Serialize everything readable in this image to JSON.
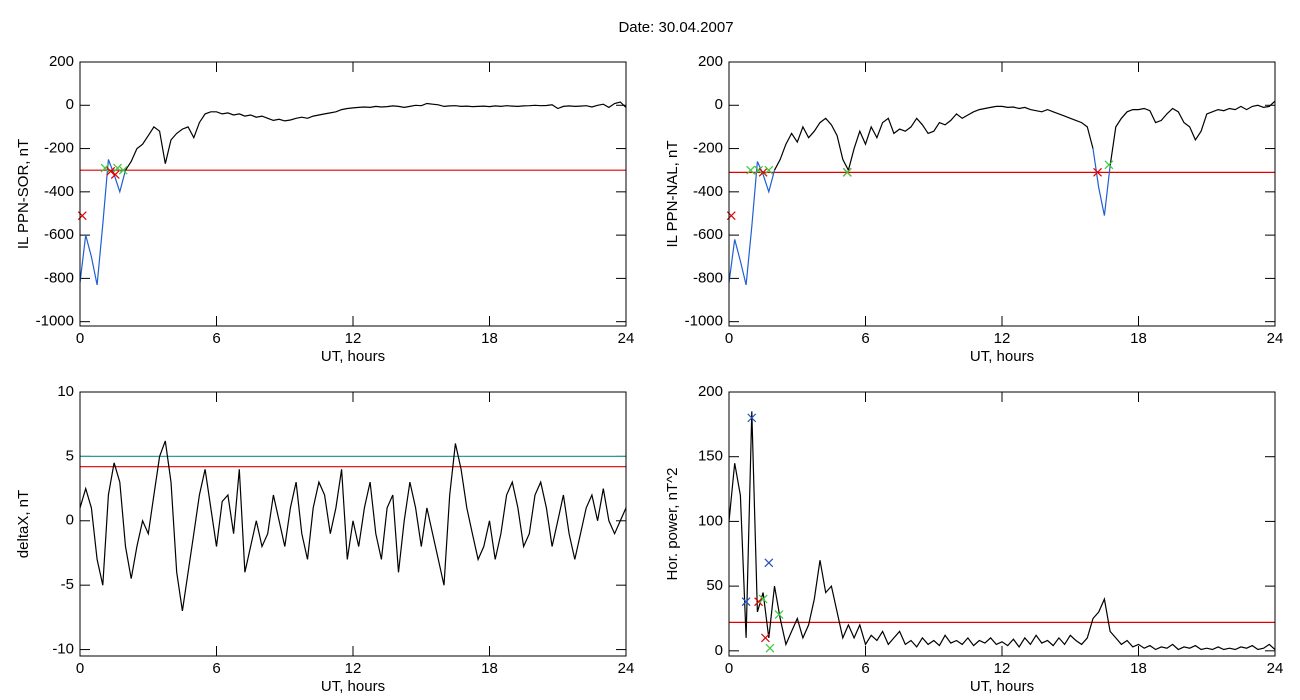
{
  "title": "Date:  30.04.2007",
  "chart_data": [
    {
      "type": "line",
      "xlabel": "UT, hours",
      "ylabel": "IL PPN-SOR, nT",
      "xlim": [
        0,
        24
      ],
      "xticks": [
        0,
        6,
        12,
        18,
        24
      ],
      "ylim": [
        -1020,
        200
      ],
      "yticks": [
        200,
        0,
        -200,
        -400,
        -600,
        -800,
        -1000
      ],
      "series": [
        {
          "color": "#1f5fd0",
          "x": [
            0,
            0.25,
            0.5,
            0.75,
            1,
            1.25,
            1.5,
            1.75,
            2
          ],
          "values": [
            -820,
            -600,
            -700,
            -830,
            -550,
            -250,
            -320,
            -400,
            -300
          ]
        },
        {
          "color": "#000000",
          "x": [
            2,
            2.25,
            2.5,
            2.75,
            3,
            3.25,
            3.5,
            3.75,
            4,
            4.25,
            4.5,
            4.75,
            5,
            5.25,
            5.5,
            5.75,
            6,
            6.25,
            6.5,
            6.75,
            7,
            7.25,
            7.5,
            7.75,
            8,
            8.25,
            8.5,
            8.75,
            9,
            9.25,
            9.5,
            9.75,
            10,
            10.25,
            10.5,
            10.75,
            11,
            11.25,
            11.5,
            11.75,
            12,
            12.25,
            12.5,
            12.75,
            13,
            13.25,
            13.5,
            13.75,
            14,
            14.25,
            14.5,
            14.75,
            15,
            15.25,
            15.5,
            15.75,
            16,
            16.25,
            16.5,
            16.75,
            17,
            17.25,
            17.5,
            17.75,
            18,
            18.25,
            18.5,
            18.75,
            19,
            19.25,
            19.5,
            19.75,
            20,
            20.25,
            20.5,
            20.75,
            21,
            21.25,
            21.5,
            21.75,
            22,
            22.25,
            22.5,
            22.75,
            23,
            23.25,
            23.5,
            23.75,
            24
          ],
          "values": [
            -300,
            -260,
            -200,
            -180,
            -140,
            -100,
            -120,
            -270,
            -160,
            -130,
            -110,
            -100,
            -150,
            -80,
            -40,
            -30,
            -30,
            -40,
            -35,
            -45,
            -40,
            -50,
            -45,
            -55,
            -50,
            -60,
            -70,
            -65,
            -72,
            -68,
            -60,
            -55,
            -60,
            -50,
            -45,
            -40,
            -35,
            -30,
            -20,
            -15,
            -12,
            -10,
            -8,
            -10,
            -5,
            -8,
            -6,
            -3,
            -5,
            -10,
            -5,
            0,
            -2,
            8,
            5,
            2,
            -5,
            -3,
            -2,
            -5,
            -4,
            -6,
            -5,
            -4,
            -6,
            -3,
            -5,
            -2,
            -4,
            -5,
            -3,
            -2,
            0,
            -2,
            -1,
            2,
            -15,
            -5,
            -3,
            -5,
            -4,
            -2,
            -8,
            0,
            5,
            -10,
            8,
            15,
            -10
          ]
        }
      ],
      "hlines": [
        {
          "value": -300,
          "color": "#e00000"
        }
      ],
      "markers": [
        {
          "x": 0.1,
          "y": -510,
          "color": "#e00000"
        },
        {
          "x": 1.1,
          "y": -290,
          "color": "#3ec83e"
        },
        {
          "x": 1.35,
          "y": -305,
          "color": "#e00000"
        },
        {
          "x": 1.55,
          "y": -320,
          "color": "#e00000"
        },
        {
          "x": 1.65,
          "y": -290,
          "color": "#3ec83e"
        },
        {
          "x": 1.9,
          "y": -300,
          "color": "#3ec83e"
        }
      ]
    },
    {
      "type": "line",
      "xlabel": "UT, hours",
      "ylabel": "IL PPN-NAL, nT",
      "xlim": [
        0,
        24
      ],
      "xticks": [
        0,
        6,
        12,
        18,
        24
      ],
      "ylim": [
        -1020,
        200
      ],
      "yticks": [
        200,
        0,
        -200,
        -400,
        -600,
        -800,
        -1000
      ],
      "series": [
        {
          "color": "#1f5fd0",
          "x": [
            0,
            0.25,
            0.5,
            0.75,
            1,
            1.25,
            1.5,
            1.75,
            2
          ],
          "values": [
            -820,
            -620,
            -720,
            -830,
            -560,
            -260,
            -320,
            -400,
            -300
          ]
        },
        {
          "color": "#000000",
          "x": [
            2,
            2.25,
            2.5,
            2.75,
            3,
            3.25,
            3.5,
            3.75,
            4,
            4.25,
            4.5,
            4.75,
            5,
            5.25,
            5.5,
            5.75,
            6,
            6.25,
            6.5,
            6.75,
            7,
            7.25,
            7.5,
            7.75,
            8,
            8.25,
            8.5,
            8.75,
            9,
            9.25,
            9.5,
            9.75,
            10,
            10.25,
            10.5,
            10.75,
            11,
            11.25,
            11.5,
            11.75,
            12,
            12.25,
            12.5,
            12.75,
            13,
            13.25,
            13.5,
            13.75,
            14,
            14.25,
            14.5,
            14.75,
            15,
            15.25,
            15.5,
            15.75,
            16
          ],
          "values": [
            -300,
            -250,
            -180,
            -130,
            -170,
            -100,
            -150,
            -120,
            -80,
            -60,
            -90,
            -140,
            -250,
            -300,
            -200,
            -120,
            -180,
            -100,
            -150,
            -80,
            -60,
            -130,
            -110,
            -120,
            -100,
            -60,
            -90,
            -130,
            -120,
            -80,
            -90,
            -70,
            -40,
            -60,
            -45,
            -30,
            -20,
            -15,
            -10,
            -5,
            -5,
            -10,
            -8,
            -15,
            -10,
            -20,
            -25,
            -30,
            -20,
            -30,
            -40,
            -50,
            -60,
            -70,
            -80,
            -100,
            -200
          ]
        },
        {
          "color": "#1f5fd0",
          "x": [
            16,
            16.25,
            16.5,
            16.75
          ],
          "values": [
            -200,
            -380,
            -510,
            -280
          ]
        },
        {
          "color": "#000000",
          "x": [
            16.75,
            17,
            17.25,
            17.5,
            17.75,
            18,
            18.25,
            18.5,
            18.75,
            19,
            19.25,
            19.5,
            19.75,
            20,
            20.25,
            20.5,
            20.75,
            21,
            21.25,
            21.5,
            21.75,
            22,
            22.25,
            22.5,
            22.75,
            23,
            23.25,
            23.5,
            23.75,
            24
          ],
          "values": [
            -280,
            -100,
            -60,
            -30,
            -20,
            -20,
            -15,
            -25,
            -80,
            -70,
            -40,
            -15,
            -30,
            -80,
            -100,
            -160,
            -120,
            -40,
            -30,
            -20,
            -25,
            -15,
            -20,
            -5,
            -20,
            -5,
            0,
            -10,
            -5,
            20
          ]
        }
      ],
      "hlines": [
        {
          "value": -310,
          "color": "#e00000"
        }
      ],
      "markers": [
        {
          "x": 0.1,
          "y": -510,
          "color": "#e00000"
        },
        {
          "x": 0.95,
          "y": -300,
          "color": "#3ec83e"
        },
        {
          "x": 1.3,
          "y": -300,
          "color": "#3ec83e"
        },
        {
          "x": 1.5,
          "y": -310,
          "color": "#e00000"
        },
        {
          "x": 1.75,
          "y": -300,
          "color": "#3ec83e"
        },
        {
          "x": 5.2,
          "y": -310,
          "color": "#e00000"
        },
        {
          "x": 5.2,
          "y": -310,
          "color": "#3ec83e"
        },
        {
          "x": 16.2,
          "y": -310,
          "color": "#e00000"
        },
        {
          "x": 16.7,
          "y": -275,
          "color": "#3ec83e"
        }
      ]
    },
    {
      "type": "line",
      "xlabel": "UT, hours",
      "ylabel": "deltaX, nT",
      "xlim": [
        0,
        24
      ],
      "xticks": [
        0,
        6,
        12,
        18,
        24
      ],
      "ylim": [
        -10.5,
        10
      ],
      "yticks": [
        10,
        5,
        0,
        -5,
        -10
      ],
      "series": [
        {
          "color": "#000000",
          "x": [
            0,
            0.25,
            0.5,
            0.75,
            1,
            1.25,
            1.5,
            1.75,
            2,
            2.25,
            2.5,
            2.75,
            3,
            3.25,
            3.5,
            3.75,
            4,
            4.25,
            4.5,
            4.75,
            5,
            5.25,
            5.5,
            5.75,
            6,
            6.25,
            6.5,
            6.75,
            7,
            7.25,
            7.5,
            7.75,
            8,
            8.25,
            8.5,
            8.75,
            9,
            9.25,
            9.5,
            9.75,
            10,
            10.25,
            10.5,
            10.75,
            11,
            11.25,
            11.5,
            11.75,
            12,
            12.25,
            12.5,
            12.75,
            13,
            13.25,
            13.5,
            13.75,
            14,
            14.25,
            14.5,
            14.75,
            15,
            15.25,
            15.5,
            15.75,
            16,
            16.25,
            16.5,
            16.75,
            17,
            17.25,
            17.5,
            17.75,
            18,
            18.25,
            18.5,
            18.75,
            19,
            19.25,
            19.5,
            19.75,
            20,
            20.25,
            20.5,
            20.75,
            21,
            21.25,
            21.5,
            21.75,
            22,
            22.25,
            22.5,
            22.75,
            23,
            23.25,
            23.5,
            23.75,
            24
          ],
          "values": [
            1,
            2.5,
            1,
            -3,
            -5,
            2,
            4.5,
            3,
            -2,
            -4.5,
            -2,
            0,
            -1,
            2,
            5,
            6.2,
            3,
            -4,
            -7,
            -4,
            -1,
            2,
            4,
            1,
            -2,
            1.5,
            2,
            -1,
            4,
            -4,
            -2,
            0,
            -2,
            -1,
            2,
            0,
            -2,
            1,
            3,
            -1,
            -3,
            1,
            3,
            2,
            -1,
            1,
            4,
            -3,
            0,
            -2,
            1,
            3,
            -1,
            -3,
            1,
            2,
            -4,
            0,
            3,
            1,
            -2,
            1,
            -1,
            -3,
            -5,
            2,
            6,
            4,
            1,
            -1,
            -3,
            -2,
            0,
            -3,
            -1,
            2,
            3,
            1,
            -2,
            -1,
            2,
            3,
            1,
            -2,
            0,
            2,
            -1,
            -3,
            -1,
            1,
            2,
            0,
            2.5,
            0,
            -1,
            0,
            1
          ]
        }
      ],
      "hlines": [
        {
          "value": 5,
          "color": "#2a9d9d"
        },
        {
          "value": 4.2,
          "color": "#e00000"
        }
      ],
      "markers": []
    },
    {
      "type": "line",
      "xlabel": "UT, hours",
      "ylabel": "Hor. power, nT^2",
      "xlim": [
        0,
        24
      ],
      "xticks": [
        0,
        6,
        12,
        18,
        24
      ],
      "ylim": [
        -4,
        200
      ],
      "yticks": [
        200,
        150,
        100,
        50,
        0
      ],
      "series": [
        {
          "color": "#000000",
          "x": [
            0,
            0.25,
            0.5,
            0.75,
            1,
            1.25,
            1.5,
            1.75,
            2,
            2.25,
            2.5,
            2.75,
            3,
            3.25,
            3.5,
            3.75,
            4,
            4.25,
            4.5,
            4.75,
            5,
            5.25,
            5.5,
            5.75,
            6,
            6.25,
            6.5,
            6.75,
            7,
            7.25,
            7.5,
            7.75,
            8,
            8.25,
            8.5,
            8.75,
            9,
            9.25,
            9.5,
            9.75,
            10,
            10.25,
            10.5,
            10.75,
            11,
            11.25,
            11.5,
            11.75,
            12,
            12.25,
            12.5,
            12.75,
            13,
            13.25,
            13.5,
            13.75,
            14,
            14.25,
            14.5,
            14.75,
            15,
            15.25,
            15.5,
            15.75,
            16,
            16.25,
            16.5,
            16.75,
            17,
            17.25,
            17.5,
            17.75,
            18,
            18.25,
            18.5,
            18.75,
            19,
            19.25,
            19.5,
            19.75,
            20,
            20.25,
            20.5,
            20.75,
            21,
            21.25,
            21.5,
            21.75,
            22,
            22.25,
            22.5,
            22.75,
            23,
            23.25,
            23.5,
            23.75,
            24
          ],
          "values": [
            100,
            145,
            120,
            10,
            185,
            30,
            45,
            10,
            50,
            25,
            5,
            15,
            25,
            10,
            20,
            40,
            70,
            45,
            50,
            30,
            10,
            20,
            10,
            20,
            5,
            12,
            8,
            15,
            5,
            10,
            15,
            5,
            8,
            3,
            10,
            5,
            8,
            4,
            12,
            6,
            8,
            5,
            10,
            4,
            8,
            6,
            10,
            5,
            7,
            4,
            9,
            3,
            10,
            5,
            12,
            6,
            8,
            4,
            10,
            5,
            12,
            8,
            5,
            10,
            25,
            30,
            40,
            15,
            10,
            5,
            8,
            3,
            5,
            2,
            4,
            1,
            3,
            2,
            5,
            1,
            3,
            2,
            4,
            1,
            2,
            1,
            3,
            1,
            2,
            1,
            3,
            2,
            4,
            1,
            2,
            5,
            1
          ]
        }
      ],
      "hlines": [
        {
          "value": 22,
          "color": "#e00000"
        }
      ],
      "markers": [
        {
          "x": 0.75,
          "y": 38,
          "color": "#2050c0"
        },
        {
          "x": 1.0,
          "y": 180,
          "color": "#2050c0"
        },
        {
          "x": 1.3,
          "y": 38,
          "color": "#e00000"
        },
        {
          "x": 1.5,
          "y": 40,
          "color": "#3ec83e"
        },
        {
          "x": 1.6,
          "y": 10,
          "color": "#e00000"
        },
        {
          "x": 1.75,
          "y": 68,
          "color": "#2050c0"
        },
        {
          "x": 1.8,
          "y": 2,
          "color": "#3ec83e"
        },
        {
          "x": 2.2,
          "y": 28,
          "color": "#3ec83e"
        }
      ]
    }
  ]
}
